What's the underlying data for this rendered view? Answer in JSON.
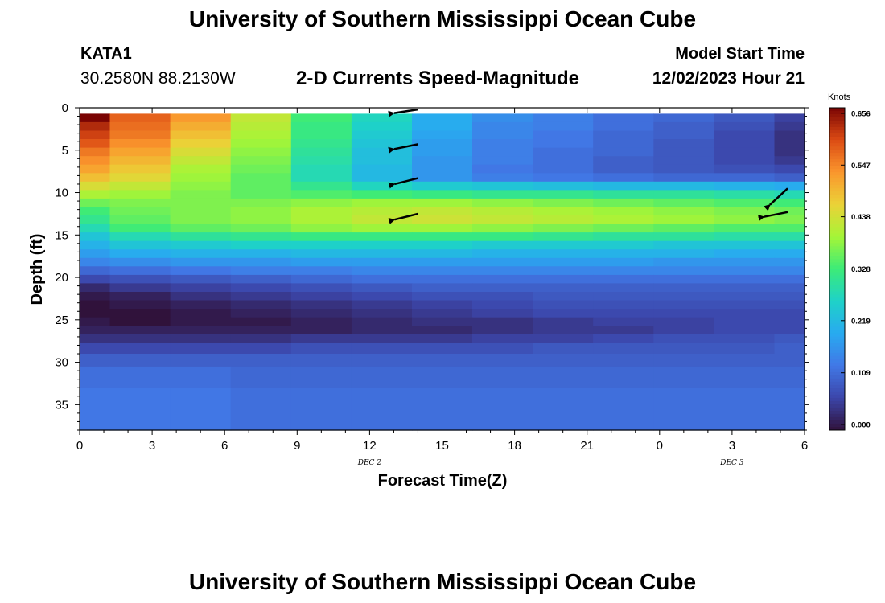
{
  "header": {
    "title": "University of Southern Mississippi Ocean Cube",
    "station_id": "KATA1",
    "station_coords": "30.2580N  88.2130W",
    "chart_title": "2-D Currents Speed-Magnitude",
    "model_start_label": "Model Start Time",
    "model_start_value": "12/02/2023 Hour 21"
  },
  "footer": {
    "title": "University of Southern Mississippi Ocean Cube"
  },
  "chart_data": {
    "type": "heatmap",
    "xlabel": "Forecast Time(Z)",
    "ylabel": "Depth (ft)",
    "x_ticks": [
      "0",
      "3",
      "6",
      "9",
      "12",
      "15",
      "18",
      "21",
      "0",
      "3",
      "6"
    ],
    "x_range_hours": [
      0,
      30
    ],
    "date_labels": [
      {
        "text": "DEC 2",
        "at_hour": 12
      },
      {
        "text": "DEC 3",
        "at_hour": 27
      }
    ],
    "y_ticks": [
      0,
      5,
      10,
      15,
      20,
      25,
      30,
      35
    ],
    "ylim": [
      0,
      38
    ],
    "colorbar": {
      "label": "Knots",
      "ticks": [
        "0.656",
        "0.547",
        "0.438",
        "0.328",
        "0.219",
        "0.109",
        "0.000"
      ],
      "min": 0.0,
      "max": 0.656
    },
    "time_columns_hours": [
      0,
      2.5,
      5,
      7.5,
      10,
      12.5,
      15,
      17.5,
      20,
      22.5,
      25,
      27.5,
      30
    ],
    "depth_layers_ft": [
      {
        "top": 0.7,
        "bottom": 1.7,
        "values": [
          0.66,
          0.57,
          0.52,
          0.42,
          0.33,
          0.27,
          0.2,
          0.16,
          0.14,
          0.12,
          0.11,
          0.09,
          0.06
        ]
      },
      {
        "top": 1.7,
        "bottom": 2.7,
        "values": [
          0.62,
          0.56,
          0.5,
          0.41,
          0.32,
          0.26,
          0.2,
          0.15,
          0.14,
          0.12,
          0.1,
          0.08,
          0.05
        ]
      },
      {
        "top": 2.7,
        "bottom": 3.7,
        "values": [
          0.6,
          0.55,
          0.48,
          0.4,
          0.32,
          0.25,
          0.19,
          0.15,
          0.13,
          0.11,
          0.1,
          0.07,
          0.04
        ]
      },
      {
        "top": 3.7,
        "bottom": 4.7,
        "values": [
          0.58,
          0.53,
          0.46,
          0.39,
          0.31,
          0.24,
          0.18,
          0.14,
          0.13,
          0.11,
          0.09,
          0.07,
          0.04
        ]
      },
      {
        "top": 4.7,
        "bottom": 5.7,
        "values": [
          0.55,
          0.51,
          0.44,
          0.38,
          0.3,
          0.23,
          0.18,
          0.14,
          0.12,
          0.11,
          0.09,
          0.07,
          0.04
        ]
      },
      {
        "top": 5.7,
        "bottom": 6.7,
        "values": [
          0.53,
          0.49,
          0.42,
          0.37,
          0.29,
          0.23,
          0.17,
          0.14,
          0.12,
          0.1,
          0.09,
          0.07,
          0.05
        ]
      },
      {
        "top": 6.7,
        "bottom": 7.7,
        "values": [
          0.51,
          0.47,
          0.4,
          0.36,
          0.28,
          0.22,
          0.17,
          0.13,
          0.12,
          0.1,
          0.09,
          0.08,
          0.07
        ]
      },
      {
        "top": 7.7,
        "bottom": 8.7,
        "values": [
          0.48,
          0.45,
          0.39,
          0.35,
          0.28,
          0.22,
          0.17,
          0.14,
          0.13,
          0.12,
          0.11,
          0.11,
          0.1
        ]
      },
      {
        "top": 8.7,
        "bottom": 9.7,
        "values": [
          0.44,
          0.42,
          0.38,
          0.35,
          0.31,
          0.27,
          0.25,
          0.24,
          0.23,
          0.22,
          0.22,
          0.21,
          0.2
        ]
      },
      {
        "top": 9.7,
        "bottom": 10.7,
        "values": [
          0.4,
          0.39,
          0.37,
          0.35,
          0.34,
          0.33,
          0.32,
          0.31,
          0.31,
          0.3,
          0.3,
          0.29,
          0.28
        ]
      },
      {
        "top": 10.7,
        "bottom": 11.7,
        "values": [
          0.36,
          0.37,
          0.37,
          0.37,
          0.38,
          0.39,
          0.39,
          0.38,
          0.37,
          0.36,
          0.35,
          0.34,
          0.33
        ]
      },
      {
        "top": 11.7,
        "bottom": 12.7,
        "values": [
          0.33,
          0.36,
          0.37,
          0.38,
          0.4,
          0.41,
          0.42,
          0.41,
          0.4,
          0.39,
          0.38,
          0.37,
          0.36
        ]
      },
      {
        "top": 12.7,
        "bottom": 13.7,
        "values": [
          0.31,
          0.35,
          0.37,
          0.38,
          0.4,
          0.42,
          0.43,
          0.42,
          0.41,
          0.4,
          0.39,
          0.38,
          0.37
        ]
      },
      {
        "top": 13.7,
        "bottom": 14.7,
        "values": [
          0.28,
          0.33,
          0.35,
          0.36,
          0.38,
          0.39,
          0.39,
          0.38,
          0.37,
          0.36,
          0.35,
          0.34,
          0.34
        ]
      },
      {
        "top": 14.7,
        "bottom": 15.7,
        "values": [
          0.24,
          0.28,
          0.3,
          0.31,
          0.32,
          0.32,
          0.32,
          0.32,
          0.31,
          0.3,
          0.3,
          0.29,
          0.29
        ]
      },
      {
        "top": 15.7,
        "bottom": 16.7,
        "values": [
          0.21,
          0.24,
          0.25,
          0.26,
          0.26,
          0.26,
          0.26,
          0.25,
          0.25,
          0.25,
          0.24,
          0.24,
          0.24
        ]
      },
      {
        "top": 16.7,
        "bottom": 17.7,
        "values": [
          0.18,
          0.2,
          0.21,
          0.21,
          0.22,
          0.22,
          0.22,
          0.21,
          0.21,
          0.21,
          0.21,
          0.2,
          0.2
        ]
      },
      {
        "top": 17.7,
        "bottom": 18.7,
        "values": [
          0.15,
          0.16,
          0.17,
          0.17,
          0.18,
          0.18,
          0.18,
          0.18,
          0.18,
          0.18,
          0.17,
          0.17,
          0.17
        ]
      },
      {
        "top": 18.7,
        "bottom": 19.7,
        "values": [
          0.11,
          0.12,
          0.13,
          0.14,
          0.14,
          0.15,
          0.15,
          0.15,
          0.15,
          0.15,
          0.15,
          0.15,
          0.15
        ]
      },
      {
        "top": 19.7,
        "bottom": 20.7,
        "values": [
          0.07,
          0.08,
          0.09,
          0.1,
          0.11,
          0.12,
          0.12,
          0.12,
          0.12,
          0.12,
          0.12,
          0.12,
          0.12
        ]
      },
      {
        "top": 20.7,
        "bottom": 21.7,
        "values": [
          0.03,
          0.05,
          0.06,
          0.07,
          0.08,
          0.09,
          0.1,
          0.1,
          0.1,
          0.1,
          0.1,
          0.1,
          0.1
        ]
      },
      {
        "top": 21.7,
        "bottom": 22.7,
        "values": [
          0.01,
          0.02,
          0.04,
          0.05,
          0.06,
          0.07,
          0.08,
          0.08,
          0.09,
          0.09,
          0.09,
          0.09,
          0.09
        ]
      },
      {
        "top": 22.7,
        "bottom": 23.7,
        "values": [
          0.0,
          0.01,
          0.02,
          0.03,
          0.04,
          0.05,
          0.06,
          0.07,
          0.08,
          0.08,
          0.08,
          0.08,
          0.08
        ]
      },
      {
        "top": 23.7,
        "bottom": 24.7,
        "values": [
          0.0,
          0.0,
          0.01,
          0.02,
          0.03,
          0.04,
          0.05,
          0.06,
          0.07,
          0.07,
          0.07,
          0.07,
          0.07
        ]
      },
      {
        "top": 24.7,
        "bottom": 25.7,
        "values": [
          0.01,
          0.0,
          0.01,
          0.01,
          0.02,
          0.03,
          0.04,
          0.04,
          0.05,
          0.06,
          0.06,
          0.07,
          0.07
        ]
      },
      {
        "top": 25.7,
        "bottom": 26.7,
        "values": [
          0.02,
          0.02,
          0.02,
          0.02,
          0.02,
          0.03,
          0.03,
          0.04,
          0.05,
          0.05,
          0.06,
          0.07,
          0.07
        ]
      },
      {
        "top": 26.7,
        "bottom": 27.7,
        "values": [
          0.04,
          0.04,
          0.04,
          0.04,
          0.05,
          0.05,
          0.05,
          0.06,
          0.06,
          0.07,
          0.08,
          0.08,
          0.09
        ]
      },
      {
        "top": 27.7,
        "bottom": 29.0,
        "values": [
          0.07,
          0.07,
          0.07,
          0.07,
          0.08,
          0.08,
          0.08,
          0.08,
          0.09,
          0.09,
          0.09,
          0.09,
          0.1
        ]
      },
      {
        "top": 29.0,
        "bottom": 30.5,
        "values": [
          0.1,
          0.1,
          0.1,
          0.1,
          0.1,
          0.1,
          0.1,
          0.1,
          0.1,
          0.1,
          0.1,
          0.1,
          0.1
        ]
      },
      {
        "top": 30.5,
        "bottom": 33.0,
        "values": [
          0.12,
          0.12,
          0.12,
          0.11,
          0.11,
          0.11,
          0.11,
          0.11,
          0.11,
          0.11,
          0.11,
          0.11,
          0.11
        ]
      },
      {
        "top": 33.0,
        "bottom": 38.0,
        "values": [
          0.13,
          0.13,
          0.13,
          0.12,
          0.12,
          0.12,
          0.12,
          0.12,
          0.12,
          0.12,
          0.12,
          0.12,
          0.12
        ]
      }
    ],
    "vectors": [
      {
        "hour": 14,
        "depth_ft": 0.2,
        "dx": -1,
        "dy": 0.15
      },
      {
        "hour": 14,
        "depth_ft": 4.3,
        "dx": -1,
        "dy": 0.2
      },
      {
        "hour": 14,
        "depth_ft": 8.3,
        "dx": -1,
        "dy": 0.25
      },
      {
        "hour": 14,
        "depth_ft": 12.5,
        "dx": -1,
        "dy": 0.25
      },
      {
        "hour": 29.3,
        "depth_ft": 9.5,
        "dx": -0.75,
        "dy": 0.7
      },
      {
        "hour": 29.3,
        "depth_ft": 12.3,
        "dx": -1,
        "dy": 0.2
      }
    ]
  }
}
